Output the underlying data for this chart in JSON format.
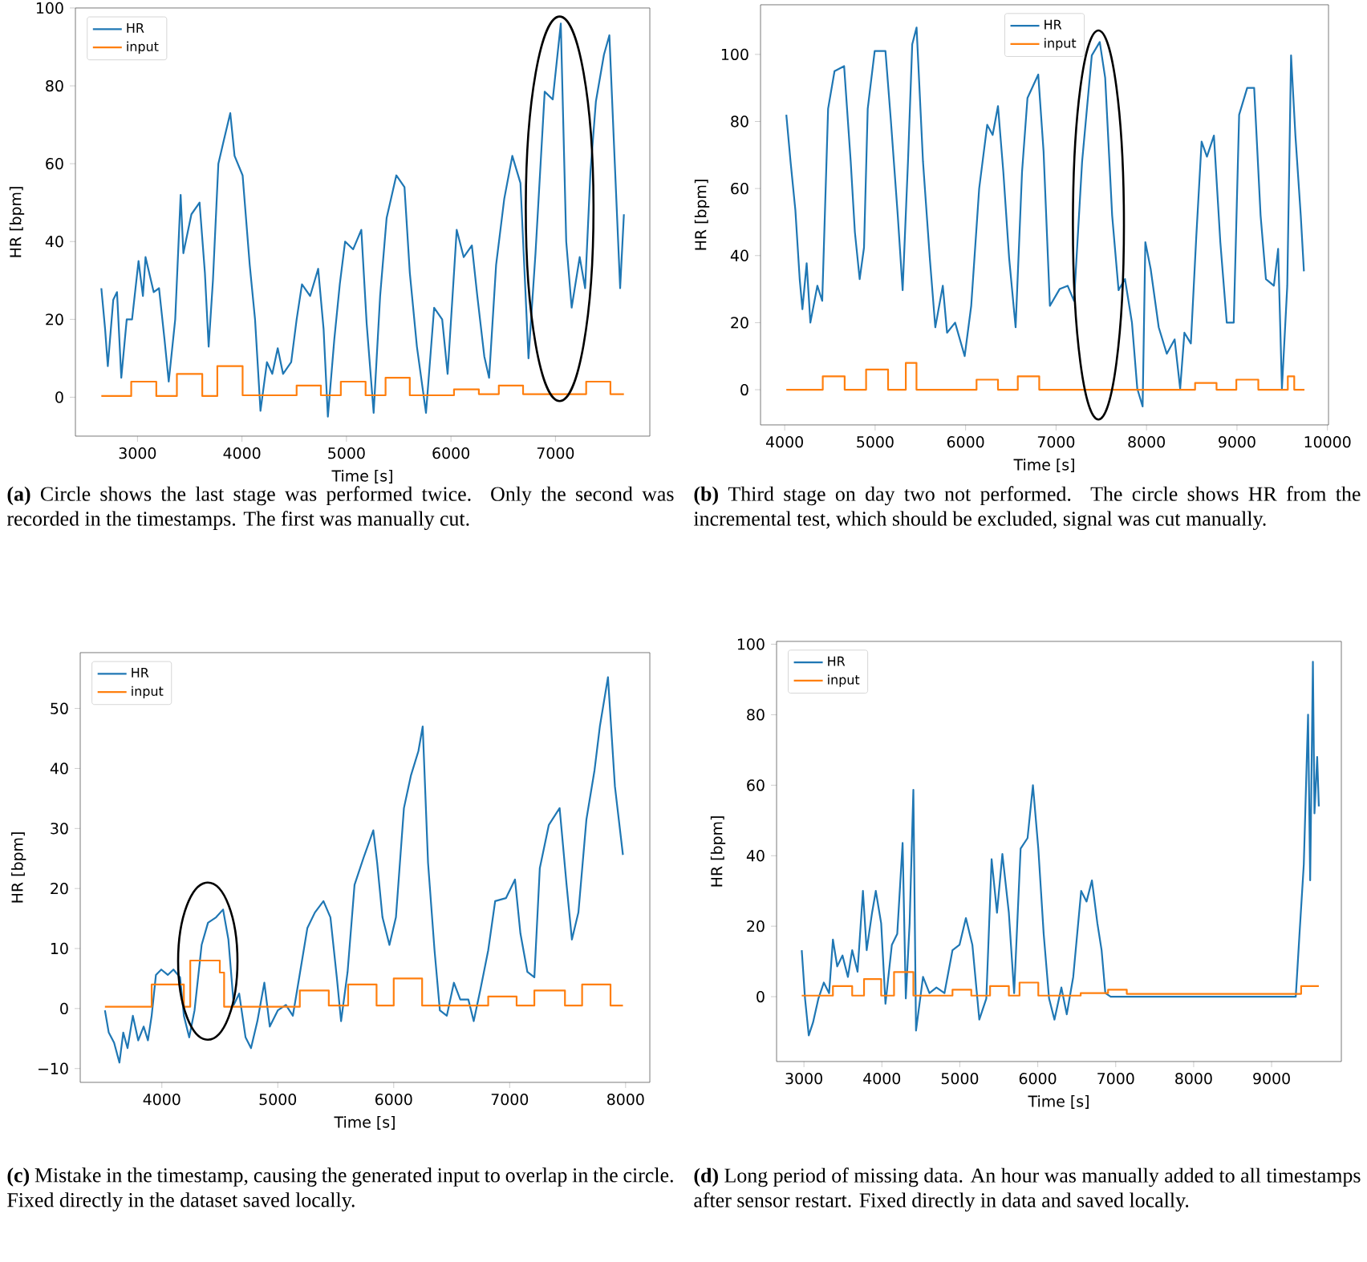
{
  "chart_data": [
    {
      "type": "line",
      "xlabel": "Time [s]",
      "ylabel": "HR [bpm]",
      "xlim": [
        2406,
        7903
      ],
      "ylim": [
        -10,
        100
      ],
      "xticks": [
        3000,
        4000,
        5000,
        6000,
        7000
      ],
      "yticks": [
        0,
        20,
        40,
        60,
        80,
        100
      ],
      "legend": "top left",
      "annotations": [
        "**(a)** Circle shows the last stage was performed twice. Only the second was recorded in the timestamps. The first was manually cut."
      ],
      "series": [
        {
          "name": "HR",
          "color": "#1f77b4",
          "x": [
            2654,
            2690,
            2716,
            2768,
            2804,
            2845,
            2897,
            2948,
            3010,
            3052,
            3077,
            3155,
            3206,
            3258,
            3299,
            3361,
            3413,
            3439,
            3516,
            3594,
            3645,
            3681,
            3722,
            3774,
            3826,
            3888,
            3929,
            4006,
            4074,
            4125,
            4177,
            4239,
            4290,
            4342,
            4393,
            4471,
            4523,
            4574,
            4652,
            4729,
            4781,
            4822,
            4884,
            4936,
            4987,
            5064,
            5142,
            5193,
            5260,
            5322,
            5384,
            5477,
            5555,
            5606,
            5674,
            5761,
            5839,
            5916,
            5968,
            6055,
            6122,
            6200,
            6252,
            6319,
            6365,
            6432,
            6510,
            6587,
            6665,
            6742,
            6809,
            6897,
            6974,
            7051,
            7103,
            7155,
            7232,
            7284,
            7335,
            7387,
            7464,
            7516,
            7568,
            7619,
            7655
          ],
          "values": [
            28,
            17.5,
            8,
            25,
            27,
            5,
            20,
            20,
            35,
            26,
            36,
            27,
            28,
            15,
            4,
            20,
            52,
            37,
            47,
            50,
            32,
            13,
            30,
            60,
            66,
            73,
            62,
            57,
            34,
            20,
            -3.5,
            9,
            6,
            12.6,
            6,
            9,
            20,
            29,
            26,
            33,
            17.5,
            -5,
            15,
            29,
            40,
            38,
            43,
            19,
            -4,
            26,
            46,
            57,
            54,
            32,
            13,
            -4,
            23,
            20,
            6,
            43,
            36,
            39,
            26,
            10.5,
            5,
            34,
            51,
            62,
            55,
            10,
            37,
            78.5,
            76.5,
            96,
            40,
            23,
            36,
            28,
            58,
            76,
            88,
            93,
            60,
            28,
            47
          ]
        },
        {
          "name": "input",
          "color": "#ff7f0e",
          "type": "step",
          "x": [
            2654,
            2940,
            3180,
            3377,
            3620,
            3764,
            4006,
            4523,
            4755,
            4946,
            5183,
            5374,
            5606,
            6029,
            6267,
            6458,
            6690,
            7294,
            7526,
            7655
          ],
          "values": [
            0.3,
            4,
            0.3,
            6,
            0.3,
            8,
            0.5,
            3,
            0.5,
            4,
            0.5,
            5,
            0.5,
            2,
            0.8,
            3,
            0.8,
            4,
            0.8,
            0.8
          ]
        }
      ]
    },
    {
      "type": "line",
      "xlabel": "Time [s]",
      "ylabel": "HR [bpm]",
      "xlim": [
        3733,
        10012
      ],
      "ylim": [
        -10.5,
        114.8
      ],
      "xticks": [
        4000,
        5000,
        6000,
        7000,
        8000,
        9000,
        10000
      ],
      "yticks": [
        0,
        20,
        40,
        60,
        80,
        100
      ],
      "legend": "top",
      "annotations": [
        "**(b)** Third stage on day two not performed. The circle shows HR from the incremental test, which should be excluded, signal was cut manually."
      ],
      "series": [
        {
          "name": "HR",
          "color": "#1f77b4",
          "x": [
            4018,
            4065,
            4118,
            4166,
            4196,
            4243,
            4284,
            4361,
            4415,
            4480,
            4551,
            4657,
            4730,
            4776,
            4829,
            4877,
            4918,
            4995,
            5114,
            5173,
            5250,
            5304,
            5363,
            5410,
            5458,
            5529,
            5605,
            5665,
            5748,
            5795,
            5884,
            5990,
            6062,
            6150,
            6239,
            6299,
            6358,
            6417,
            6482,
            6553,
            6624,
            6684,
            6803,
            6862,
            6932,
            7039,
            7128,
            7199,
            7288,
            7395,
            7483,
            7543,
            7620,
            7691,
            7762,
            7839,
            7898,
            7957,
            7987,
            8046,
            8135,
            8224,
            8311,
            8372,
            8419,
            8490,
            8550,
            8609,
            8668,
            8745,
            8816,
            8887,
            8964,
            9024,
            9113,
            9190,
            9261,
            9320,
            9408,
            9455,
            9497,
            9556,
            9598,
            9646,
            9705,
            9740
          ],
          "values": [
            82,
            68,
            53.6,
            33,
            24,
            37.7,
            20,
            31,
            26.5,
            83.8,
            95,
            96.5,
            68,
            47,
            33,
            42.4,
            83.8,
            101,
            101,
            80.6,
            52,
            29.7,
            68,
            103,
            108,
            68,
            39,
            18.6,
            31,
            17,
            20,
            10,
            25,
            60,
            79,
            76,
            84.6,
            65,
            39,
            18.6,
            65,
            87,
            94,
            71,
            25,
            30,
            31,
            26.5,
            68,
            99.7,
            103.7,
            93,
            52,
            29.7,
            33,
            20,
            0.3,
            -5,
            44,
            36,
            18.6,
            10.7,
            15,
            0.3,
            17,
            13.8,
            45.6,
            74,
            69.5,
            75.8,
            44,
            20,
            20,
            82,
            90,
            90,
            52,
            33,
            31,
            42,
            0.3,
            31,
            99.7,
            75.8,
            52,
            35.3
          ]
        },
        {
          "name": "input",
          "color": "#ff7f0e",
          "type": "step",
          "x": [
            4018,
            4421,
            4663,
            4900,
            5143,
            5339,
            5457,
            6121,
            6358,
            6577,
            6814,
            8537,
            8774,
            8993,
            9236,
            9562,
            9633,
            9746
          ],
          "values": [
            0,
            4,
            0,
            6,
            0,
            8,
            0,
            3,
            0,
            4,
            0,
            2,
            0,
            3,
            0,
            4,
            0,
            0
          ]
        }
      ]
    },
    {
      "type": "line",
      "xlabel": "Time [s]",
      "ylabel": "HR [bpm]",
      "xlim": [
        3296,
        8209
      ],
      "ylim": [
        -12.3,
        59.3
      ],
      "xticks": [
        4000,
        5000,
        6000,
        7000,
        8000
      ],
      "yticks": [
        {
          "value": -10,
          "label": "−10"
        },
        0,
        10,
        20,
        30,
        40,
        50
      ],
      "legend": "top left",
      "annotations": [
        "**(c)** Mistake in the timestamp, causing the generated input to overlap in the circle. Fixed directly in the dataset saved locally."
      ],
      "series": [
        {
          "name": "HR",
          "color": "#1f77b4",
          "x": [
            3509,
            3542,
            3588,
            3634,
            3667,
            3704,
            3750,
            3796,
            3843,
            3880,
            3912,
            3949,
            3995,
            4051,
            4100,
            4157,
            4190,
            4236,
            4282,
            4343,
            4398,
            4468,
            4528,
            4574,
            4620,
            4667,
            4722,
            4769,
            4824,
            4884,
            4931,
            5000,
            5070,
            5130,
            5185,
            5255,
            5320,
            5394,
            5454,
            5509,
            5546,
            5602,
            5662,
            5741,
            5824,
            5857,
            5903,
            5963,
            6019,
            6088,
            6148,
            6213,
            6250,
            6296,
            6352,
            6398,
            6458,
            6519,
            6574,
            6644,
            6690,
            6750,
            6815,
            6875,
            6968,
            7046,
            7093,
            7153,
            7213,
            7260,
            7338,
            7431,
            7491,
            7537,
            7593,
            7662,
            7732,
            7778,
            7848,
            7908,
            7977
          ],
          "values": [
            -0.3,
            -4,
            -5.7,
            -9,
            -4,
            -6.6,
            -1.2,
            -5.3,
            -3,
            -5.3,
            -1.2,
            5.6,
            6.5,
            5.6,
            6.5,
            5.2,
            -1.2,
            -4.8,
            -0.3,
            10.6,
            14.3,
            15.2,
            16.5,
            11.5,
            0.6,
            2.5,
            -4.8,
            -6.6,
            -2.1,
            4.3,
            -3,
            -0.3,
            0.6,
            -1.2,
            5.2,
            13.4,
            16,
            17.9,
            15.2,
            5.2,
            -2.1,
            6.1,
            20.6,
            25.2,
            29.7,
            24.3,
            15.2,
            10.6,
            15.2,
            33.4,
            38.8,
            42.9,
            47,
            24.3,
            9.7,
            -0.3,
            -1.2,
            4.3,
            1.5,
            1.5,
            -2.1,
            3.4,
            9.7,
            17.9,
            18.4,
            21.5,
            12.5,
            6.1,
            5.2,
            23.4,
            30.6,
            33.4,
            20.6,
            11.5,
            16,
            31.5,
            39.7,
            47,
            55.2,
            37,
            25.6
          ]
        },
        {
          "name": "input",
          "color": "#ff7f0e",
          "type": "step",
          "x": [
            3509,
            3912,
            4190,
            4245,
            4500,
            4537,
            5190,
            5440,
            5607,
            5852,
            6000,
            6245,
            6815,
            7060,
            7213,
            7477,
            7625,
            7870,
            7977
          ],
          "values": [
            0.3,
            4,
            0.3,
            8,
            6,
            0.3,
            3,
            0.5,
            4,
            0.5,
            5,
            0.5,
            2,
            0.5,
            3,
            0.5,
            4,
            0.5,
            0.5
          ]
        }
      ]
    },
    {
      "type": "line",
      "xlabel": "Time [s]",
      "ylabel": "HR [bpm]",
      "xlim": [
        2649,
        9895
      ],
      "ylim": [
        -18.4,
        100.8
      ],
      "xticks": [
        3000,
        4000,
        5000,
        6000,
        7000,
        8000,
        9000
      ],
      "yticks": [
        0,
        20,
        40,
        60,
        80,
        100
      ],
      "legend": "top left",
      "annotations": [
        "**(d)** Long period of missing data. An hour was manually added to all timestamps after sensor restart. Fixed directly in data and saved locally."
      ],
      "series": [
        {
          "name": "HR",
          "color": "#1f77b4",
          "x": [
            2972,
            3014,
            3062,
            3117,
            3186,
            3255,
            3323,
            3372,
            3427,
            3495,
            3564,
            3619,
            3688,
            3757,
            3805,
            3874,
            3922,
            3991,
            4046,
            4128,
            4197,
            4266,
            4307,
            4356,
            4404,
            4438,
            4528,
            4610,
            4700,
            4803,
            4906,
            4996,
            5078,
            5161,
            5250,
            5340,
            5408,
            5477,
            5546,
            5629,
            5697,
            5780,
            5869,
            5938,
            6007,
            6076,
            6145,
            6214,
            6303,
            6372,
            6455,
            6557,
            6626,
            6695,
            6765,
            6819,
            6867,
            6936,
            9310,
            9358,
            9413,
            9468,
            9495,
            9530,
            9550,
            9585,
            9606
          ],
          "values": [
            13.2,
            -0.5,
            -11,
            -7.3,
            -0.5,
            4,
            1,
            16.2,
            8.6,
            11.7,
            5.6,
            13.2,
            7.1,
            30,
            13.2,
            23.8,
            30,
            20.8,
            -2,
            14.7,
            17.8,
            43.6,
            -0.5,
            20.8,
            58.7,
            -9.6,
            5.6,
            1,
            2.6,
            1,
            13.2,
            14.7,
            22.3,
            14.7,
            -6.5,
            -0.5,
            39,
            23.8,
            40.5,
            23.8,
            1,
            42,
            45,
            60,
            42,
            17.8,
            -0.5,
            -6.5,
            2.6,
            -5,
            5.6,
            30,
            27,
            33,
            20.8,
            13.2,
            1,
            0,
            0,
            17.8,
            37.5,
            80,
            33,
            95,
            52,
            68,
            54
          ]
        },
        {
          "name": "input",
          "color": "#ff7f0e",
          "type": "step",
          "x": [
            2972,
            3372,
            3619,
            3771,
            3991,
            4156,
            4404,
            4906,
            5147,
            5388,
            5629,
            5766,
            6007,
            6551,
            6902,
            7142,
            9379,
            9606
          ],
          "values": [
            0.3,
            3,
            0.3,
            5,
            0.3,
            7,
            0.3,
            2,
            0.3,
            3,
            0.3,
            4,
            0.3,
            1,
            2,
            0.8,
            3,
            3
          ]
        }
      ]
    }
  ]
}
